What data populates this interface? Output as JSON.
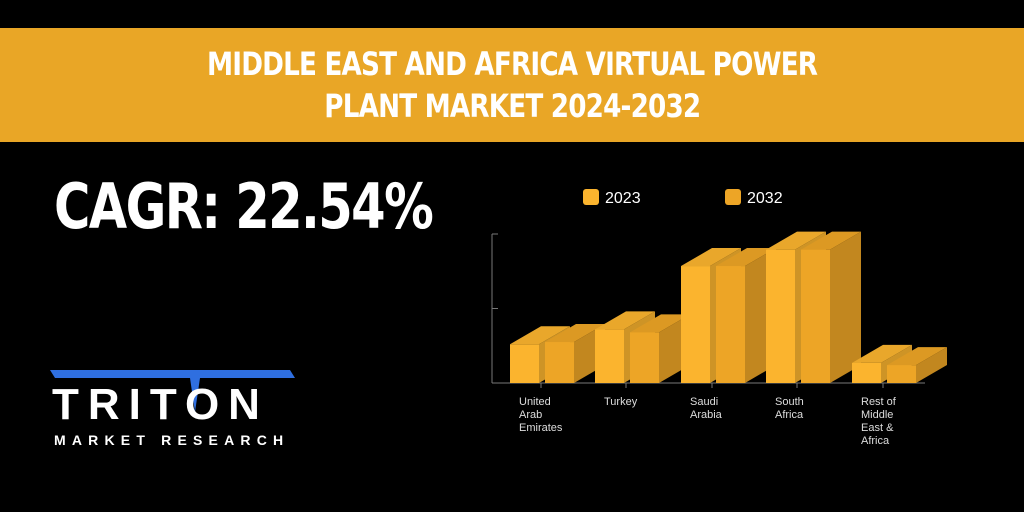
{
  "header": {
    "title_line1": "MIDDLE EAST AND AFRICA VIRTUAL POWER",
    "title_line2": "PLANT MARKET 2024-2032"
  },
  "cagr": {
    "label": "CAGR: 22.54%"
  },
  "logo": {
    "word": "TRITON",
    "subtitle": "MARKET RESEARCH"
  },
  "colors": {
    "banner": "#E9A626",
    "s2023": "#FBB42E",
    "s2032": "#EDA526",
    "logo_blue": "#2F6FE0"
  },
  "chart_data": {
    "type": "bar",
    "title": "",
    "categories": [
      "United Arab Emirates",
      "Turkey",
      "Saudi Arabia",
      "South Africa",
      "Rest of Middle East & Africa"
    ],
    "category_lines": [
      [
        "United",
        "Arab",
        "Emirates"
      ],
      [
        "Turkey"
      ],
      [
        "Saudi",
        "Arabia"
      ],
      [
        "South",
        "Africa"
      ],
      [
        "Rest of",
        "Middle",
        "East &",
        "Africa"
      ]
    ],
    "series": [
      {
        "name": "2023",
        "values": [
          0.52,
          0.72,
          1.57,
          1.79,
          0.27
        ]
      },
      {
        "name": "2032",
        "values": [
          0.55,
          0.68,
          1.57,
          1.79,
          0.24
        ]
      }
    ],
    "ylim": [
      0,
      2
    ],
    "xlabel": "",
    "ylabel": "",
    "legend": "top",
    "grid": false
  }
}
